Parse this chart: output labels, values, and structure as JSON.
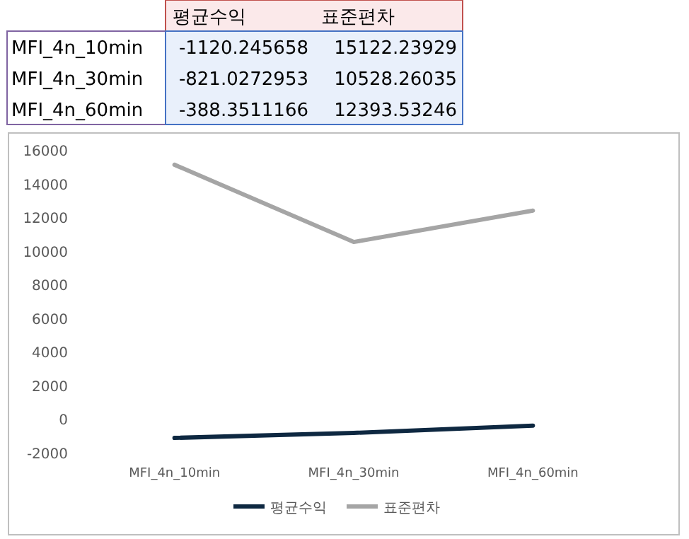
{
  "chart_data": [
    {
      "type": "other",
      "annotations": [
        "평균수익",
        "표준편차",
        "MFI_4n_10min",
        "-1120.245658",
        "15122.23929",
        "MFI_4n_30min",
        "-821.0272953",
        "10528.26035",
        "MFI_4n_60min",
        "-388.3511166",
        "12393.53246"
      ]
    },
    {
      "type": "line",
      "categories": [
        "MFI_4n_10min",
        "MFI_4n_30min",
        "MFI_4n_60min"
      ],
      "series": [
        {
          "name": "평균수익",
          "color": "#0e2841",
          "values": [
            -1120.245658,
            -821.0272953,
            -388.3511166
          ]
        },
        {
          "name": "표준편차",
          "color": "#a5a5a5",
          "values": [
            15122.23929,
            10528.26035,
            12393.53246
          ]
        }
      ],
      "ylim": [
        -2000,
        16000
      ],
      "yticks": [
        -2000,
        0,
        2000,
        4000,
        6000,
        8000,
        10000,
        12000,
        14000,
        16000
      ],
      "legend": "bottom",
      "marker": "none",
      "line_style": "solid"
    }
  ]
}
